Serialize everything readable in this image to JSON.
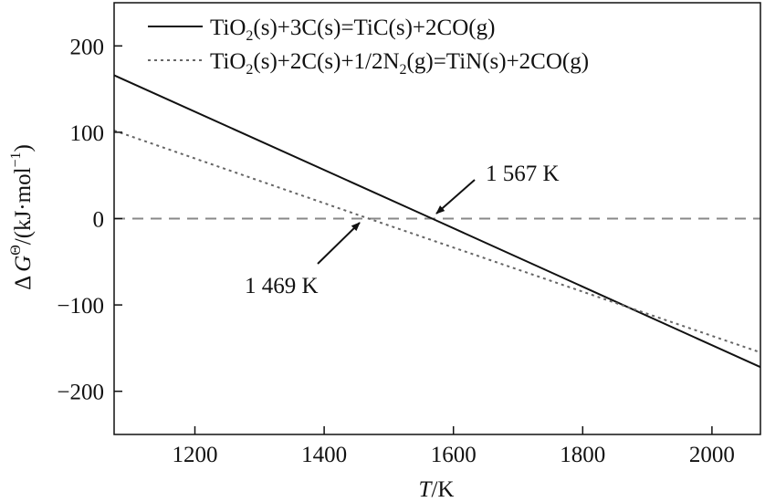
{
  "chart_data": {
    "type": "line",
    "xlabel": {
      "symbol": "T",
      "unit": "/K"
    },
    "ylabel": {
      "prefix": "Δ",
      "symbol": "G",
      "sup": "Θ",
      "unit_open": "/(kJ·mol",
      "unit_sup": "−1",
      "unit_close": ")"
    },
    "xlim": [
      1075,
      2075
    ],
    "ylim": [
      -250,
      250
    ],
    "xticks": [
      1200,
      1400,
      1600,
      1800,
      2000
    ],
    "yticks": [
      200,
      100,
      0,
      -100,
      -200
    ],
    "ytick_labels": [
      "200",
      "100",
      "0",
      "−100",
      "−200"
    ],
    "grid": false,
    "legend_position": "top-right",
    "series": [
      {
        "name": "TiO2(s)+3C(s)=TiC(s)+2CO(g)",
        "legend": {
          "a": "TiO",
          "sub": "2",
          "b": "(s)+3C(s)=TiC(s)+2CO(g)"
        },
        "style": "solid",
        "color": "#111111",
        "x": [
          1075,
          1567,
          2075
        ],
        "y": [
          166,
          0,
          -172
        ]
      },
      {
        "name": "TiO2(s)+2C(s)+1/2N2(g)=TiN(s)+2CO(g)",
        "legend": {
          "a": "TiO",
          "sub": "2",
          "b": "(s)+2C(s)+1/2N",
          "sub2": "2",
          "c": "(g)=TiN(s)+2CO(g)"
        },
        "style": "dotted",
        "color": "#666666",
        "x": [
          1075,
          1469,
          2075
        ],
        "y": [
          102,
          0,
          -155
        ]
      }
    ],
    "reference_line": {
      "y": 0,
      "style": "dashed",
      "color": "#888888"
    },
    "annotations": [
      {
        "label": "1 567 K",
        "x": 1567,
        "y": 0
      },
      {
        "label": "1 469 K",
        "x": 1469,
        "y": 0
      }
    ]
  }
}
